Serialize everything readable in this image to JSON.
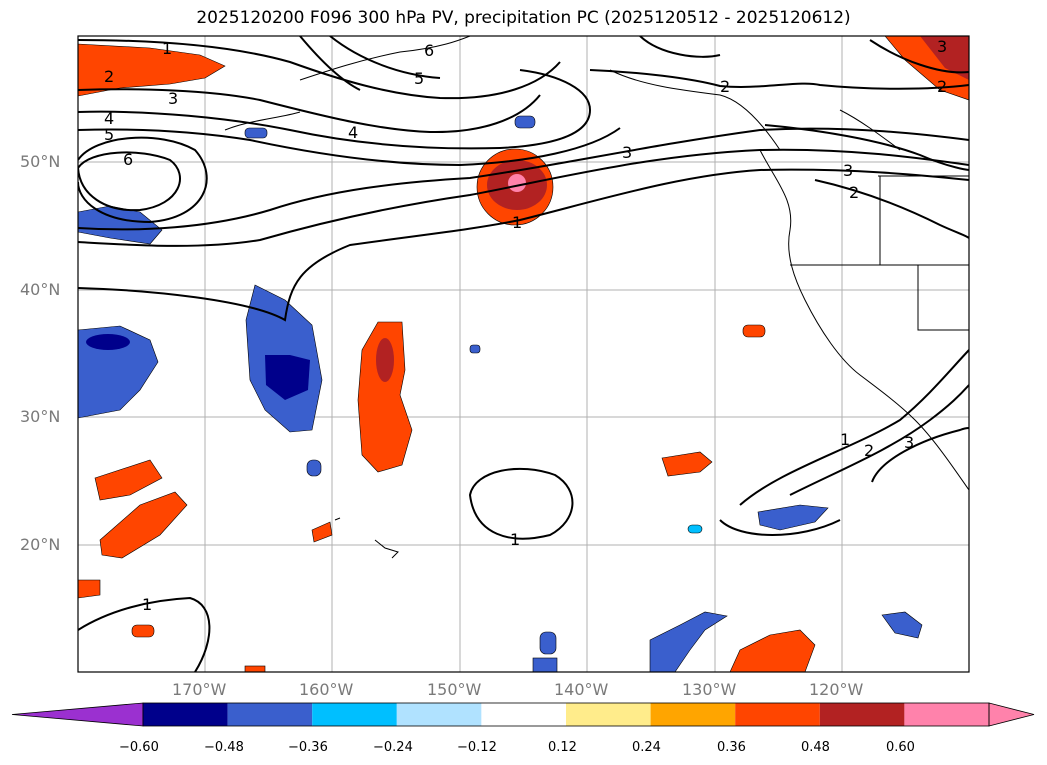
{
  "title": "2025120200 F096 300 hPa PV, precipitation PC (2025120512 - 2025120612)",
  "lat_labels": [
    "50°N",
    "40°N",
    "30°N",
    "20°N"
  ],
  "lon_labels": [
    "170°W",
    "160°W",
    "150°W",
    "140°W",
    "130°W",
    "120°W"
  ],
  "colorbar": {
    "ticks": [
      "−0.60",
      "−0.48",
      "−0.36",
      "−0.24",
      "−0.12",
      "0.12",
      "0.24",
      "0.36",
      "0.48",
      "0.60"
    ],
    "colors": [
      "#9b30d0",
      "#00008b",
      "#3a5fcd",
      "#00bfff",
      "#b0e2ff",
      "#ffffff",
      "#ffec8b",
      "#ffa500",
      "#ff4500",
      "#b22222",
      "#ff82ab",
      "#ff82ab"
    ]
  },
  "contour_labels": {
    "c1": "1",
    "c2": "2",
    "c3": "3",
    "c4": "4",
    "c5": "5",
    "c6": "6"
  }
}
